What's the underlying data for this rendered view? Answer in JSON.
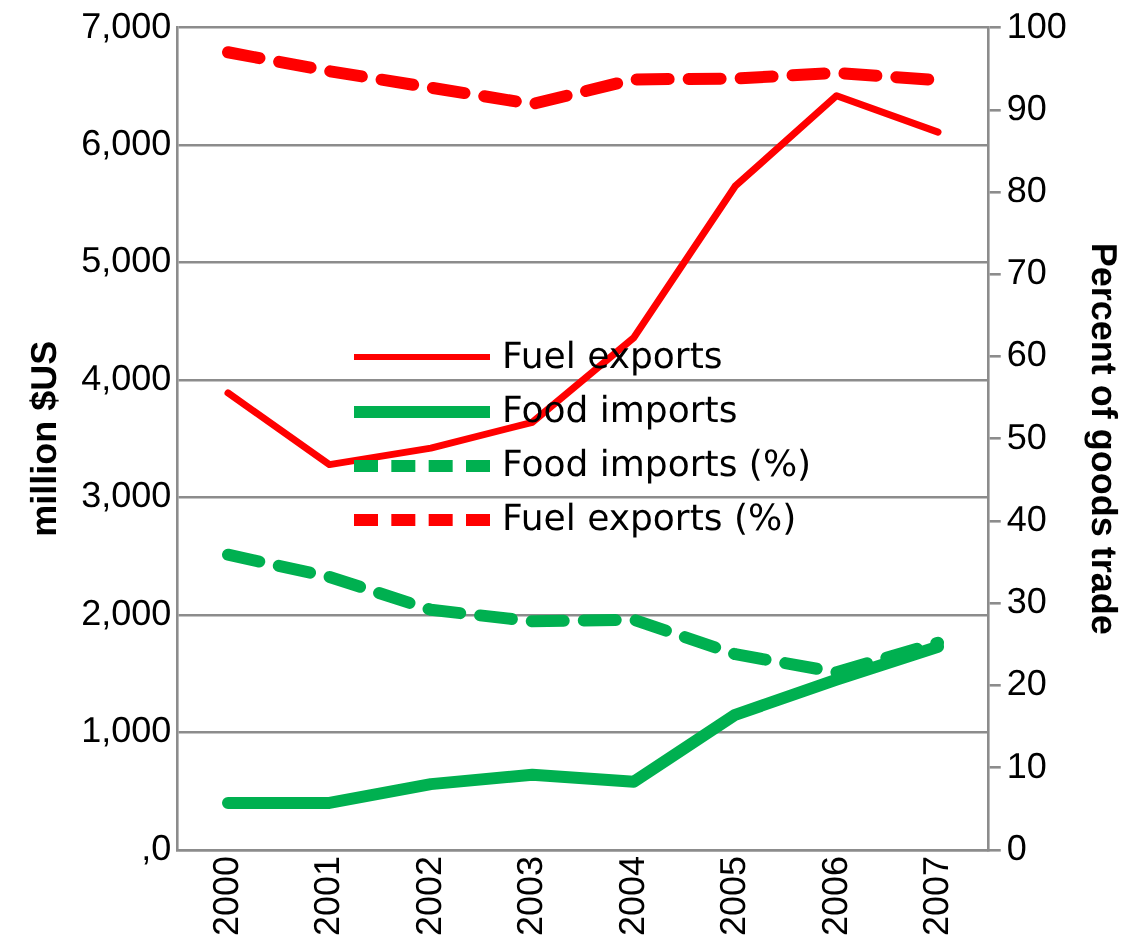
{
  "chart_data": {
    "type": "line",
    "ylabel": "million $US",
    "y2label": "Percent of goods trade",
    "categories": [
      "2000",
      "2001",
      "2002",
      "2003",
      "2004",
      "2005",
      "2006",
      "2007"
    ],
    "series": [
      {
        "name": "Fuel exports",
        "color": "#ff0000",
        "line_style": "solid",
        "values": [
          3890,
          3280,
          3420,
          3640,
          4360,
          5650,
          6420,
          6110
        ]
      },
      {
        "name": "Food imports",
        "color": "#00b050",
        "line_style": "solid",
        "values": [
          400,
          400,
          560,
          640,
          580,
          1150,
          1450,
          1730
        ]
      },
      {
        "name": "Food imports (%)",
        "color": "#00b050",
        "line_style": "dashed",
        "axis": "y2",
        "values": [
          35.9,
          33.2,
          29.2,
          27.8,
          28.0,
          23.8,
          21.6,
          25.2
        ]
      },
      {
        "name": "Fuel exports (%)",
        "color": "#ff0000",
        "line_style": "dashed",
        "axis": "y2",
        "values": [
          97.0,
          94.7,
          92.7,
          90.7,
          93.7,
          93.8,
          94.5,
          93.6
        ]
      }
    ],
    "ylim": [
      0,
      7000
    ],
    "yticks": [
      {
        "value": 0,
        "label": ",0"
      },
      {
        "value": 1000,
        "label": "1,000"
      },
      {
        "value": 2000,
        "label": "2,000"
      },
      {
        "value": 3000,
        "label": "3,000"
      },
      {
        "value": 4000,
        "label": "4,000"
      },
      {
        "value": 5000,
        "label": "5,000"
      },
      {
        "value": 6000,
        "label": "6,000"
      },
      {
        "value": 7000,
        "label": "7,000"
      }
    ],
    "y2lim": [
      0,
      100
    ],
    "y2ticks": [
      0,
      10,
      20,
      30,
      40,
      50,
      60,
      70,
      80,
      90,
      100
    ],
    "grid": "y",
    "legend": "center",
    "marker": "none"
  }
}
